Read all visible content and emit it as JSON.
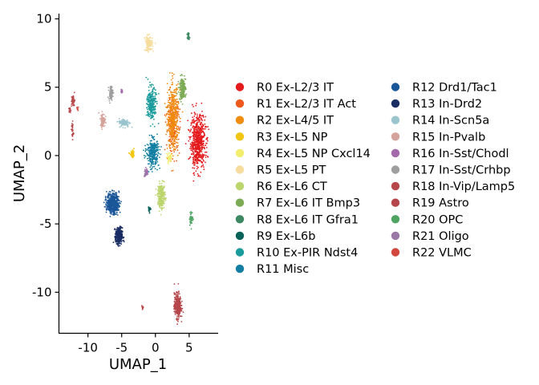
{
  "chart_data": {
    "type": "scatter",
    "xlabel": "UMAP_1",
    "ylabel": "UMAP_2",
    "xlim": [
      -14.3,
      9.3
    ],
    "ylim": [
      -13.0,
      10.5
    ],
    "x_ticks": [
      -10,
      -5,
      0,
      5
    ],
    "x_tick_labels": [
      "-10",
      "-5",
      "0",
      "5"
    ],
    "y_ticks": [
      -10,
      -5,
      0,
      5,
      10
    ],
    "y_tick_labels": [
      "-10",
      "-5",
      "0",
      "5",
      "10"
    ],
    "grid": false,
    "legend_position": "right",
    "series": [
      {
        "name": "R0 Ex-L2/3 IT",
        "color": "#E41A1C",
        "clusters": [
          {
            "cx": 6.3,
            "cy": 1.0,
            "sx": 1.1,
            "sy": 1.9,
            "n": 650
          }
        ]
      },
      {
        "name": "R1 Ex-L2/3 IT Act",
        "color": "#EE5A1B",
        "clusters": [
          {
            "cx": 2.6,
            "cy": 2.2,
            "sx": 1.0,
            "sy": 2.0,
            "n": 200
          }
        ]
      },
      {
        "name": "R2 Ex-L4/5 IT",
        "color": "#F08C0E",
        "clusters": [
          {
            "cx": 2.6,
            "cy": 2.8,
            "sx": 0.8,
            "sy": 2.3,
            "n": 420
          }
        ]
      },
      {
        "name": "R3 Ex-L5 NP",
        "color": "#F2C511",
        "clusters": [
          {
            "cx": -3.4,
            "cy": 0.1,
            "sx": 0.35,
            "sy": 0.25,
            "n": 50
          }
        ]
      },
      {
        "name": "R4 Ex-L5 NP Cxcl14",
        "color": "#F4EE6E",
        "clusters": [
          {
            "cx": 2.1,
            "cy": -0.2,
            "sx": 0.4,
            "sy": 0.4,
            "n": 45
          }
        ]
      },
      {
        "name": "R5 Ex-L5 PT",
        "color": "#F6DD9E",
        "clusters": [
          {
            "cx": -1.0,
            "cy": 8.2,
            "sx": 0.55,
            "sy": 0.55,
            "n": 140
          }
        ]
      },
      {
        "name": "R6 Ex-L6 CT",
        "color": "#BCD56D",
        "clusters": [
          {
            "cx": 0.9,
            "cy": -3.0,
            "sx": 0.55,
            "sy": 0.9,
            "n": 230
          }
        ]
      },
      {
        "name": "R7 Ex-L6 IT Bmp3",
        "color": "#7CAA55",
        "clusters": [
          {
            "cx": 4.0,
            "cy": 4.9,
            "sx": 0.5,
            "sy": 0.8,
            "n": 170
          }
        ]
      },
      {
        "name": "R8 Ex-L6 IT Gfra1",
        "color": "#3C8862",
        "clusters": [
          {
            "cx": 4.9,
            "cy": 8.8,
            "sx": 0.15,
            "sy": 0.3,
            "n": 25
          }
        ]
      },
      {
        "name": "R9 Ex-L6b",
        "color": "#08625A",
        "clusters": [
          {
            "cx": -0.9,
            "cy": -3.9,
            "sx": 0.15,
            "sy": 0.3,
            "n": 25
          }
        ]
      },
      {
        "name": "R10 Ex-PIR Ndst4",
        "color": "#1A9B9C",
        "clusters": [
          {
            "cx": -0.6,
            "cy": 3.8,
            "sx": 0.65,
            "sy": 1.2,
            "n": 260
          }
        ]
      },
      {
        "name": "R11 Misc",
        "color": "#127FA2",
        "clusters": [
          {
            "cx": -0.4,
            "cy": 0.2,
            "sx": 0.9,
            "sy": 1.0,
            "n": 320
          }
        ]
      },
      {
        "name": "R12 Drd1/Tac1",
        "color": "#1A5799",
        "clusters": [
          {
            "cx": -6.3,
            "cy": -3.5,
            "sx": 0.9,
            "sy": 0.75,
            "n": 520
          }
        ]
      },
      {
        "name": "R13 In-Drd2",
        "color": "#1A2E64",
        "clusters": [
          {
            "cx": -5.4,
            "cy": -5.9,
            "sx": 0.5,
            "sy": 0.6,
            "n": 360
          }
        ]
      },
      {
        "name": "R14 In-Scn5a",
        "color": "#9AC4CE",
        "clusters": [
          {
            "cx": -4.6,
            "cy": 2.4,
            "sx": 0.8,
            "sy": 0.3,
            "n": 120
          }
        ]
      },
      {
        "name": "R15 In-Pvalb",
        "color": "#D4A39B",
        "clusters": [
          {
            "cx": -7.8,
            "cy": 2.6,
            "sx": 0.35,
            "sy": 0.5,
            "n": 95
          }
        ]
      },
      {
        "name": "R16 In-Sst/Chodl",
        "color": "#A46AAB",
        "clusters": [
          {
            "cx": -5.0,
            "cy": 4.7,
            "sx": 0.15,
            "sy": 0.15,
            "n": 12
          },
          {
            "cx": -1.3,
            "cy": -1.2,
            "sx": 0.2,
            "sy": 0.3,
            "n": 20
          }
        ]
      },
      {
        "name": "R17 In-Sst/Crhbp",
        "color": "#9E9E9E",
        "clusters": [
          {
            "cx": -6.6,
            "cy": 4.6,
            "sx": 0.3,
            "sy": 0.5,
            "n": 80
          }
        ]
      },
      {
        "name": "R18 In-Vip/Lamp5",
        "color": "#B7474A",
        "clusters": [
          {
            "cx": -12.2,
            "cy": 4.0,
            "sx": 0.25,
            "sy": 0.45,
            "n": 45
          },
          {
            "cx": -12.3,
            "cy": 1.8,
            "sx": 0.15,
            "sy": 0.7,
            "n": 30
          },
          {
            "cx": -12.7,
            "cy": 3.3,
            "sx": 0.15,
            "sy": 0.2,
            "n": 15
          }
        ]
      },
      {
        "name": "R19 Astro",
        "color": "#B5474C",
        "clusters": [
          {
            "cx": 3.3,
            "cy": -11.0,
            "sx": 0.5,
            "sy": 0.9,
            "n": 330
          },
          {
            "cx": -1.9,
            "cy": -11.1,
            "sx": 0.15,
            "sy": 0.15,
            "n": 12
          }
        ]
      },
      {
        "name": "R20 OPC",
        "color": "#4FA464",
        "clusters": [
          {
            "cx": 5.3,
            "cy": -4.6,
            "sx": 0.25,
            "sy": 0.5,
            "n": 45
          }
        ]
      },
      {
        "name": "R21 Oligo",
        "color": "#9A79A6",
        "clusters": [
          {
            "cx": -1.5,
            "cy": -1.3,
            "sx": 0.2,
            "sy": 0.25,
            "n": 20
          }
        ]
      },
      {
        "name": "R22 VLMC",
        "color": "#D2473E",
        "clusters": [
          {
            "cx": -11.5,
            "cy": 3.4,
            "sx": 0.15,
            "sy": 0.15,
            "n": 8
          }
        ]
      }
    ]
  }
}
